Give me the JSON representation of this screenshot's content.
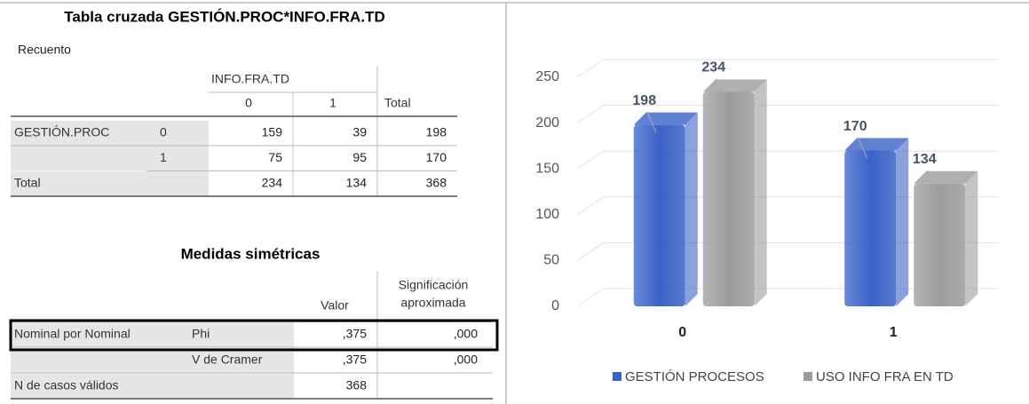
{
  "crosstab": {
    "title": "Tabla cruzada GESTIÓN.PROC*INFO.FRA.TD",
    "subtitle": "Recuento",
    "col_group": "INFO.FRA.TD",
    "col_headers": [
      "0",
      "1",
      "Total"
    ],
    "rows": [
      {
        "label": "GESTIÓN.PROC",
        "sub": "0",
        "cells": [
          "159",
          "39",
          "198"
        ]
      },
      {
        "sub": "1",
        "cells": [
          "75",
          "95",
          "170"
        ]
      },
      {
        "label": "Total",
        "cells": [
          "234",
          "134",
          "368"
        ]
      }
    ]
  },
  "measures": {
    "title": "Medidas simétricas",
    "headers": [
      "Valor",
      [
        "Significación",
        "aproximada"
      ]
    ],
    "rows": [
      {
        "label": "Nominal por Nominal",
        "sub": "Phi",
        "cells": [
          ",375",
          ",000"
        ]
      },
      {
        "sub": "V de Cramer",
        "cells": [
          ",375",
          ",000"
        ]
      },
      {
        "label": "N de casos válidos",
        "cells": [
          "368"
        ]
      }
    ]
  },
  "chart_data": {
    "type": "bar",
    "categories": [
      "0",
      "1"
    ],
    "series": [
      {
        "name": "GESTIÓN PROCESOS",
        "color": "#3a62c8",
        "values": [
          198,
          170
        ]
      },
      {
        "name": "USO INFO FRA EN TD",
        "color": "#9c9c9c",
        "values": [
          234,
          134
        ]
      }
    ],
    "ylim": [
      0,
      250
    ],
    "yticks": [
      0,
      50,
      100,
      150,
      200,
      250
    ],
    "grid": true
  }
}
